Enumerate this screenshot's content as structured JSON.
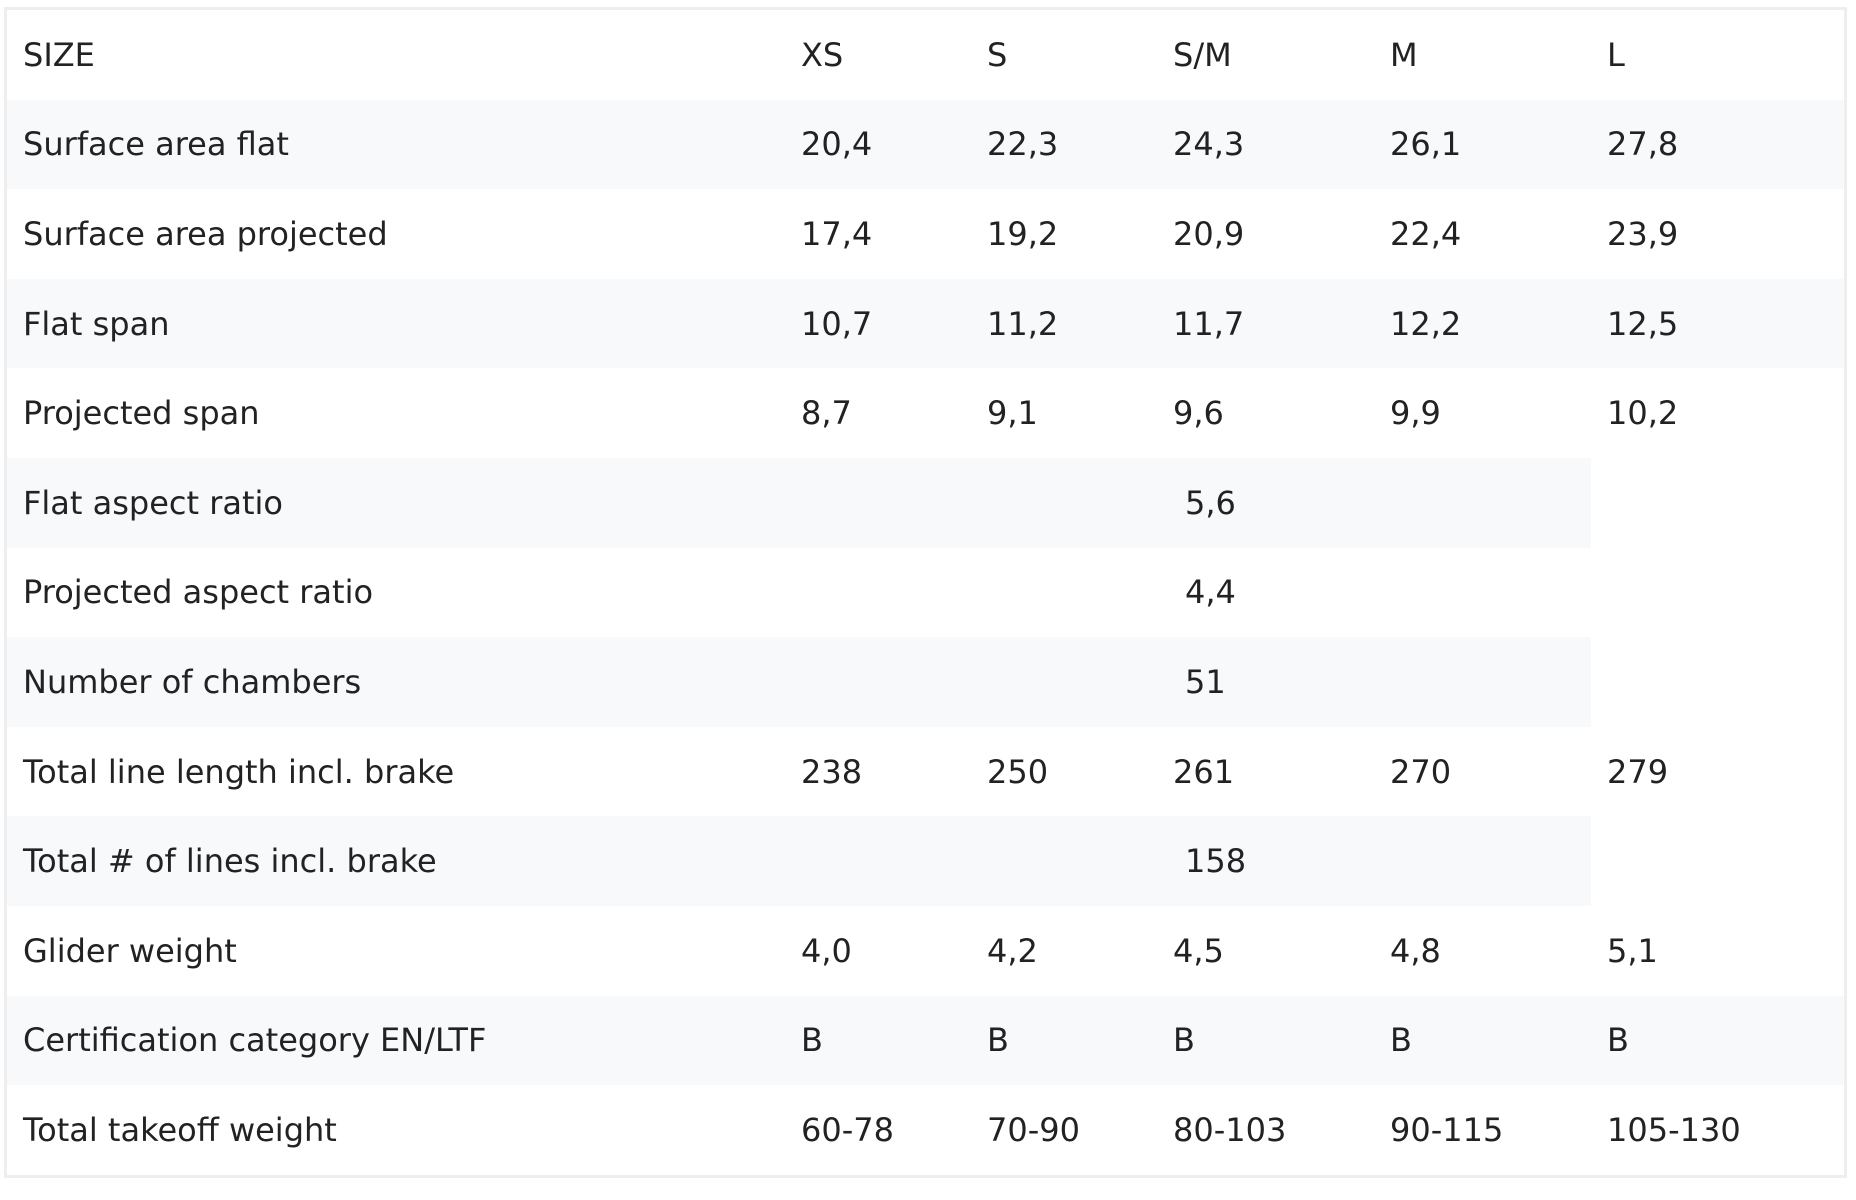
{
  "table": {
    "header": [
      "SIZE",
      "XS",
      "S",
      "S/M",
      "M",
      "L"
    ],
    "rows": [
      {
        "label": "Surface area flat",
        "values": [
          "20,4",
          "22,3",
          "24,3",
          "26,1",
          "27,8"
        ]
      },
      {
        "label": "Surface area projected",
        "values": [
          "17,4",
          "19,2",
          "20,9",
          "22,4",
          "23,9"
        ]
      },
      {
        "label": "Flat span",
        "values": [
          "10,7",
          "11,2",
          "11,7",
          "12,2",
          "12,5"
        ]
      },
      {
        "label": "Projected span",
        "values": [
          "8,7",
          "9,1",
          "9,6",
          "9,9",
          "10,2"
        ]
      },
      {
        "label": "Flat aspect ratio",
        "value": "5,6"
      },
      {
        "label": "Projected aspect ratio",
        "value": "4,4"
      },
      {
        "label": "Number of chambers",
        "value": "51"
      },
      {
        "label": "Total line length incl. brake",
        "values": [
          "238",
          "250",
          "261",
          "270",
          "279"
        ]
      },
      {
        "label": "Total # of lines incl. brake",
        "value": "158"
      },
      {
        "label": "Glider weight",
        "values": [
          "4,0",
          "4,2",
          "4,5",
          "4,8",
          "5,1"
        ]
      },
      {
        "label": "Certification category EN/LTF",
        "values": [
          "B",
          "B",
          "B",
          "B",
          "B"
        ]
      },
      {
        "label": "Total takeoff weight",
        "values": [
          "60-78",
          "70-90",
          "80-103",
          "90-115",
          "105-130"
        ]
      }
    ]
  },
  "colors": {
    "stripe": "#f7f9fb",
    "border": "#eeeeee",
    "text": "#222222"
  }
}
